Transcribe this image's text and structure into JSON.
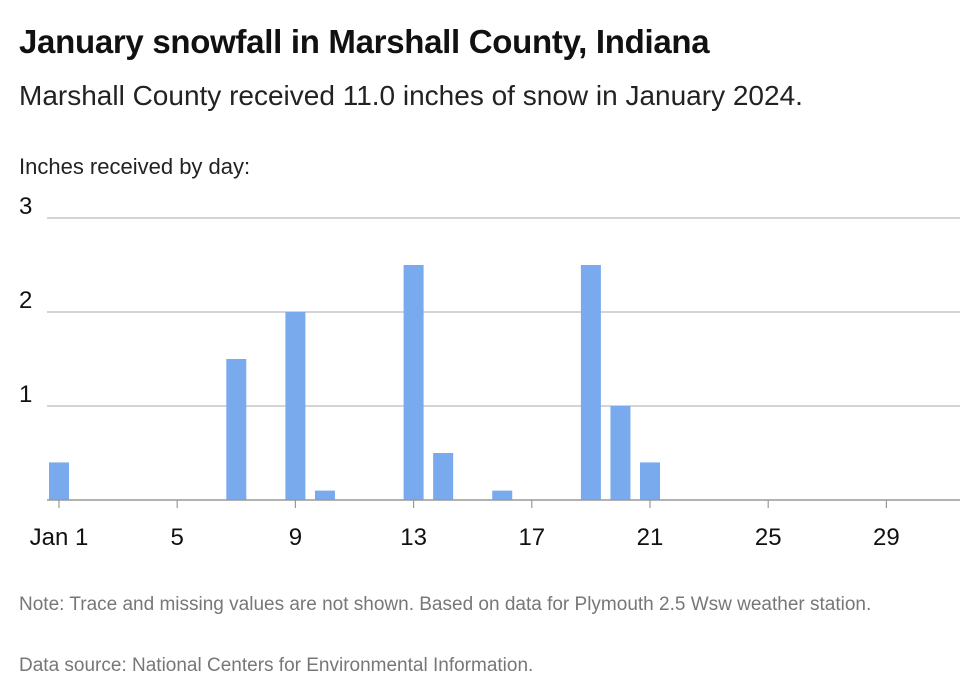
{
  "header": {
    "title": "January snowfall in Marshall County, Indiana",
    "subtitle": "Marshall County received 11.0 inches of snow in January 2024."
  },
  "footer": {
    "note": "Note: Trace and missing values are not shown. Based on data for Plymouth 2.5 Wsw weather station.",
    "source": "Data source: National Centers for Environmental Information."
  },
  "colors": {
    "bar": "#7aaaee",
    "gridline": "#bbbbbb",
    "baseline": "#999999",
    "text": "#111111"
  },
  "chart_data": {
    "type": "bar",
    "title": "January snowfall in Marshall County, Indiana",
    "subtitle": "Marshall County received 11.0 inches of snow in January 2024.",
    "ylabel": "Inches received by day:",
    "xlabel": "",
    "ylim": [
      0,
      3
    ],
    "yticks": [
      1,
      2,
      3
    ],
    "xlim": [
      1,
      31
    ],
    "xticks": [
      {
        "day": 1,
        "label": "Jan 1"
      },
      {
        "day": 5,
        "label": "5"
      },
      {
        "day": 9,
        "label": "9"
      },
      {
        "day": 13,
        "label": "13"
      },
      {
        "day": 17,
        "label": "17"
      },
      {
        "day": 21,
        "label": "21"
      },
      {
        "day": 25,
        "label": "25"
      },
      {
        "day": 29,
        "label": "29"
      }
    ],
    "grid": true,
    "legend": "none",
    "points": [
      {
        "day": 1,
        "value": 0.4
      },
      {
        "day": 7,
        "value": 1.5
      },
      {
        "day": 9,
        "value": 2.0
      },
      {
        "day": 10,
        "value": 0.1
      },
      {
        "day": 13,
        "value": 2.5
      },
      {
        "day": 14,
        "value": 0.5
      },
      {
        "day": 16,
        "value": 0.1
      },
      {
        "day": 19,
        "value": 2.5
      },
      {
        "day": 20,
        "value": 1.0
      },
      {
        "day": 21,
        "value": 0.4
      }
    ]
  }
}
